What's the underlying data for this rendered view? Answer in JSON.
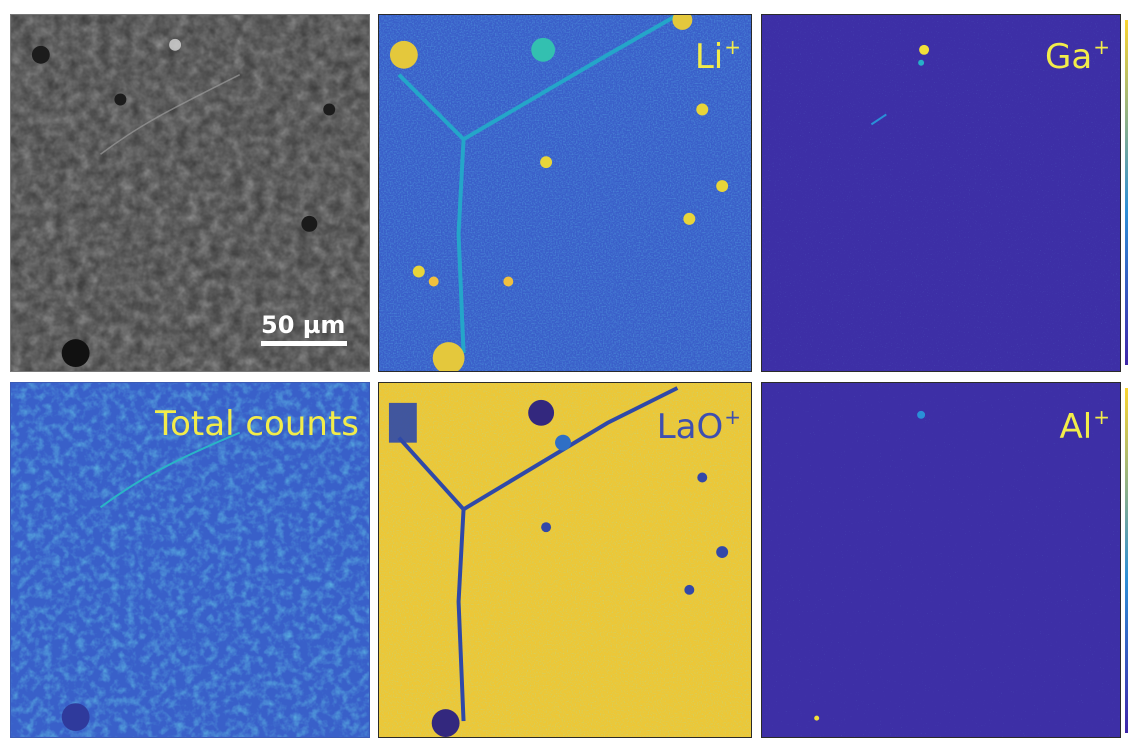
{
  "panels": {
    "sem": {
      "scale_bar_text": "50 µm"
    },
    "li": {
      "ion": "Li",
      "charge": "+"
    },
    "ga": {
      "ion": "Ga",
      "charge": "+"
    },
    "total": {
      "label": "Total counts"
    },
    "lao": {
      "ion": "LaO",
      "charge": "+"
    },
    "al": {
      "ion": "Al",
      "charge": "+"
    }
  },
  "colors": {
    "label_yellow": "#f2ec4a",
    "map_low": "#3e26a8",
    "map_mid": "#2d8fd5",
    "map_high": "#f9d42e"
  }
}
